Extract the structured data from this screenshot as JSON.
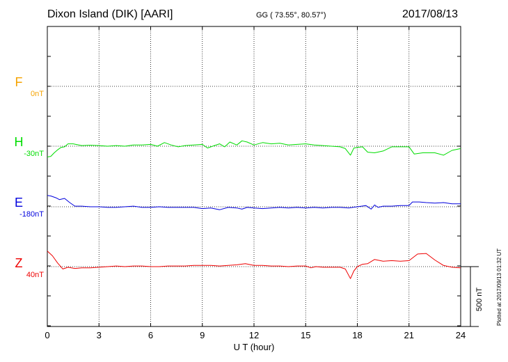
{
  "header": {
    "station": "Dixon Island (DIK)  [AARI]",
    "coords": "GG ( 73.55°,  80.57°)",
    "date": "2017/08/13"
  },
  "credit": "Plotted at 2017/09/13 01:32 UT",
  "chart_data": {
    "type": "line",
    "xlabel": "U T (hour)",
    "xlim": [
      0,
      24
    ],
    "xticks": [
      0,
      3,
      6,
      9,
      12,
      15,
      18,
      21,
      24
    ],
    "scale_bar": {
      "label": "500 nT",
      "value": 500
    },
    "channels": [
      {
        "name": "F",
        "baseline": "0nT",
        "color": "#f5a300",
        "data": []
      },
      {
        "name": "H",
        "baseline": "-30nT",
        "color": "#00dd00",
        "data": [
          [
            0,
            -90
          ],
          [
            0.2,
            -85
          ],
          [
            0.4,
            -55
          ],
          [
            0.6,
            -30
          ],
          [
            0.8,
            -10
          ],
          [
            1.0,
            -5
          ],
          [
            1.2,
            20
          ],
          [
            1.5,
            20
          ],
          [
            2.0,
            5
          ],
          [
            2.5,
            8
          ],
          [
            3.0,
            5
          ],
          [
            3.5,
            0
          ],
          [
            4.0,
            5
          ],
          [
            4.5,
            0
          ],
          [
            5.0,
            10
          ],
          [
            5.5,
            10
          ],
          [
            6.0,
            15
          ],
          [
            6.4,
            0
          ],
          [
            6.8,
            30
          ],
          [
            7.2,
            10
          ],
          [
            7.6,
            -5
          ],
          [
            8.0,
            5
          ],
          [
            8.5,
            10
          ],
          [
            9.0,
            15
          ],
          [
            9.3,
            -15
          ],
          [
            9.6,
            0
          ],
          [
            10.0,
            20
          ],
          [
            10.3,
            -5
          ],
          [
            10.6,
            35
          ],
          [
            11.0,
            10
          ],
          [
            11.3,
            45
          ],
          [
            11.6,
            35
          ],
          [
            12.0,
            10
          ],
          [
            12.5,
            30
          ],
          [
            13.0,
            20
          ],
          [
            13.5,
            25
          ],
          [
            14.0,
            10
          ],
          [
            14.5,
            15
          ],
          [
            15.0,
            20
          ],
          [
            15.5,
            10
          ],
          [
            16.0,
            5
          ],
          [
            16.5,
            0
          ],
          [
            17.0,
            -5
          ],
          [
            17.3,
            -20
          ],
          [
            17.6,
            -75
          ],
          [
            17.8,
            -15
          ],
          [
            18.0,
            -10
          ],
          [
            18.3,
            -5
          ],
          [
            18.6,
            -50
          ],
          [
            19.0,
            -55
          ],
          [
            19.5,
            -40
          ],
          [
            20.0,
            -5
          ],
          [
            20.5,
            -5
          ],
          [
            21.0,
            -5
          ],
          [
            21.3,
            -65
          ],
          [
            21.8,
            -55
          ],
          [
            22.5,
            -55
          ],
          [
            23.0,
            -75
          ],
          [
            23.5,
            -35
          ],
          [
            24.0,
            -20
          ]
        ]
      },
      {
        "name": "E",
        "baseline": "-180nT",
        "color": "#0000dd",
        "data": [
          [
            0,
            95
          ],
          [
            0.2,
            90
          ],
          [
            0.5,
            75
          ],
          [
            0.7,
            60
          ],
          [
            1.0,
            70
          ],
          [
            1.3,
            35
          ],
          [
            1.6,
            5
          ],
          [
            2.0,
            5
          ],
          [
            2.5,
            0
          ],
          [
            3.0,
            0
          ],
          [
            3.5,
            -5
          ],
          [
            4.0,
            -5
          ],
          [
            4.5,
            0
          ],
          [
            5.0,
            5
          ],
          [
            5.5,
            -5
          ],
          [
            6.0,
            -5
          ],
          [
            6.5,
            0
          ],
          [
            7.0,
            -5
          ],
          [
            7.5,
            -5
          ],
          [
            8.0,
            -5
          ],
          [
            8.5,
            -5
          ],
          [
            9.0,
            -15
          ],
          [
            9.5,
            -10
          ],
          [
            10.0,
            -25
          ],
          [
            10.5,
            -5
          ],
          [
            11.0,
            -10
          ],
          [
            11.3,
            -20
          ],
          [
            11.6,
            -5
          ],
          [
            12.0,
            -10
          ],
          [
            12.5,
            -15
          ],
          [
            13.0,
            -10
          ],
          [
            13.5,
            -5
          ],
          [
            14.0,
            -10
          ],
          [
            14.5,
            -5
          ],
          [
            15.0,
            -10
          ],
          [
            15.5,
            -5
          ],
          [
            16.0,
            -10
          ],
          [
            16.5,
            -5
          ],
          [
            17.0,
            -5
          ],
          [
            17.5,
            -10
          ],
          [
            18.0,
            0
          ],
          [
            18.5,
            10
          ],
          [
            18.8,
            -20
          ],
          [
            19.0,
            15
          ],
          [
            19.2,
            -5
          ],
          [
            19.5,
            5
          ],
          [
            20.0,
            5
          ],
          [
            20.5,
            10
          ],
          [
            21.0,
            10
          ],
          [
            21.2,
            40
          ],
          [
            21.6,
            40
          ],
          [
            22.0,
            35
          ],
          [
            22.5,
            30
          ],
          [
            23.0,
            35
          ],
          [
            23.5,
            25
          ],
          [
            24.0,
            25
          ]
        ]
      },
      {
        "name": "Z",
        "baseline": "40nT",
        "color": "#ee0000",
        "data": [
          [
            0,
            130
          ],
          [
            0.3,
            90
          ],
          [
            0.6,
            30
          ],
          [
            0.9,
            -20
          ],
          [
            1.2,
            -5
          ],
          [
            1.6,
            -15
          ],
          [
            2.0,
            -10
          ],
          [
            2.5,
            -10
          ],
          [
            3.0,
            -5
          ],
          [
            3.5,
            0
          ],
          [
            4.0,
            5
          ],
          [
            4.5,
            0
          ],
          [
            5.0,
            5
          ],
          [
            5.5,
            5
          ],
          [
            6.0,
            0
          ],
          [
            6.5,
            0
          ],
          [
            7.0,
            5
          ],
          [
            7.5,
            5
          ],
          [
            8.0,
            5
          ],
          [
            8.5,
            10
          ],
          [
            9.0,
            10
          ],
          [
            9.5,
            10
          ],
          [
            10.0,
            5
          ],
          [
            10.5,
            10
          ],
          [
            11.0,
            15
          ],
          [
            11.5,
            25
          ],
          [
            12.0,
            10
          ],
          [
            12.5,
            10
          ],
          [
            13.0,
            5
          ],
          [
            13.5,
            5
          ],
          [
            14.0,
            0
          ],
          [
            14.5,
            5
          ],
          [
            15.0,
            5
          ],
          [
            15.3,
            -10
          ],
          [
            15.6,
            0
          ],
          [
            16.0,
            -5
          ],
          [
            16.5,
            -5
          ],
          [
            17.0,
            -5
          ],
          [
            17.3,
            -20
          ],
          [
            17.6,
            -100
          ],
          [
            17.8,
            -35
          ],
          [
            18.0,
            0
          ],
          [
            18.3,
            20
          ],
          [
            18.6,
            25
          ],
          [
            19.0,
            60
          ],
          [
            19.5,
            45
          ],
          [
            20.0,
            50
          ],
          [
            20.5,
            45
          ],
          [
            21.0,
            50
          ],
          [
            21.5,
            105
          ],
          [
            22.0,
            110
          ],
          [
            22.5,
            55
          ],
          [
            23.0,
            10
          ],
          [
            23.5,
            -5
          ],
          [
            24.0,
            -10
          ]
        ]
      }
    ]
  }
}
